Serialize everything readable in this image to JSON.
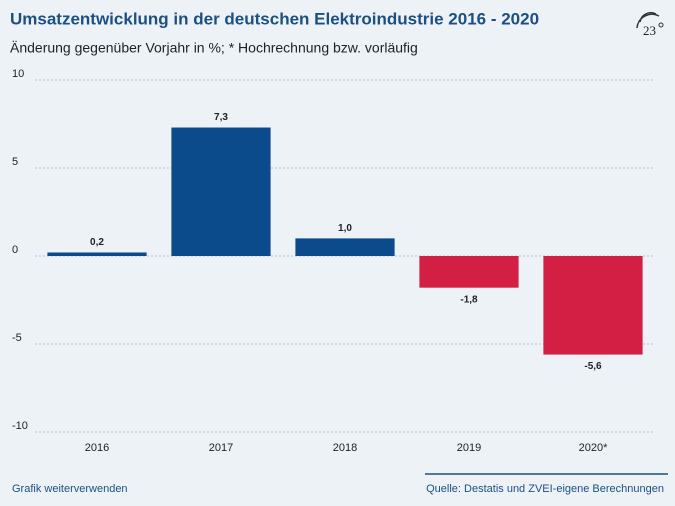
{
  "chart_data": {
    "type": "bar",
    "title": "Umsatzentwicklung in der deutschen Elektroindustrie 2016 - 2020",
    "subtitle": "Änderung gegenüber Vorjahr in %; * Hochrechnung bzw. vorläufig",
    "categories": [
      "2016",
      "2017",
      "2018",
      "2019",
      "2020*"
    ],
    "values": [
      0.2,
      7.3,
      1.0,
      -1.8,
      -5.6
    ],
    "value_labels": [
      "0,2",
      "7,3",
      "1,0",
      "-1,8",
      "-5,6"
    ],
    "colors": [
      "#0b4a8b",
      "#0b4a8b",
      "#0b4a8b",
      "#d21f43",
      "#d21f43"
    ],
    "ylim": [
      -10,
      10
    ],
    "yticks": [
      -10,
      -5,
      0,
      5,
      10
    ],
    "grid": true
  },
  "footer": {
    "link": "Grafik weiterverwenden",
    "source": "Quelle: Destatis und ZVEI-eigene Berechnungen"
  },
  "logo": "23"
}
